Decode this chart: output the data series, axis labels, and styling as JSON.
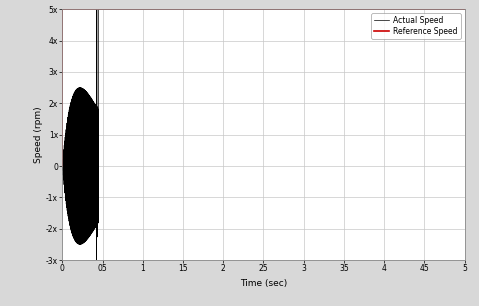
{
  "title": "",
  "xlabel": "Time (sec)",
  "ylabel": "Speed (rpm)",
  "xlim": [
    0,
    5
  ],
  "ylim": [
    -300,
    500
  ],
  "yticks": [
    -300,
    -200,
    -100,
    0,
    100,
    200,
    300,
    400,
    500
  ],
  "ytick_labels": [
    "-3x",
    "-2x",
    "-1x",
    "0",
    "1x",
    "2x",
    "3x",
    "4x",
    "5x"
  ],
  "xticks": [
    0,
    0.5,
    1,
    1.5,
    2,
    2.5,
    3,
    3.5,
    4,
    4.5,
    5
  ],
  "xtick_labels": [
    "0",
    "05",
    "1",
    "15",
    "2",
    "25",
    "3",
    "35",
    "4",
    "45",
    "5"
  ],
  "reference_speed": 500,
  "actual_color": "#000000",
  "ref_color": "#cc0000",
  "legend_labels": [
    "Actual Speed",
    "Reference Speed"
  ],
  "bg_color": "#ffffff",
  "grid_color": "#c8c8c8",
  "oscillation_end": 0.45,
  "num_oscillations": 80,
  "osc_amplitude_peak": 250,
  "figsize": [
    4.79,
    3.06
  ],
  "dpi": 100
}
